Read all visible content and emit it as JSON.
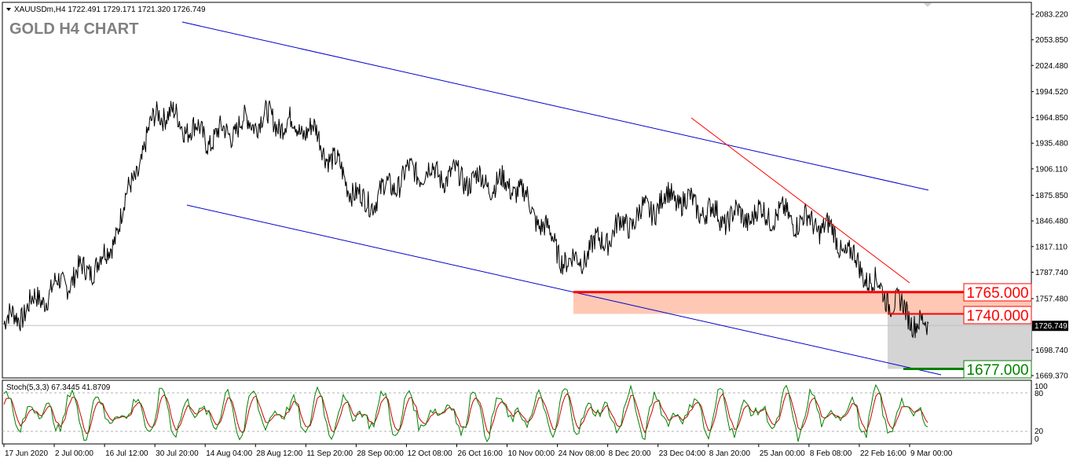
{
  "header": {
    "symbol_line": "XAUUSDm,H4  1722.491 1729.171 1721.320 1726.749",
    "chart_title": "GOLD H4 CHART"
  },
  "current_price": "1726.749",
  "levels": [
    {
      "label": "1765.000",
      "value": 1765.0,
      "color": "#ff0000"
    },
    {
      "label": "1740.000",
      "value": 1740.0,
      "color": "#ff0000"
    },
    {
      "label": "1677.000",
      "value": 1677.0,
      "color": "#008000"
    }
  ],
  "stochastic": {
    "label": "Stoch(5,3,3) 67.3445 41.8709",
    "ticks": [
      "100",
      "80",
      "20",
      "0"
    ],
    "main_color": "#008000",
    "signal_color": "#cc0000"
  },
  "chart_data": {
    "type": "line",
    "title": "GOLD H4 CHART",
    "xlabel": "",
    "ylabel": "",
    "ylim": [
      1669.37,
      2083.22
    ],
    "y_ticks": [
      "2083.220",
      "2053.850",
      "2024.480",
      "1994.520",
      "1964.850",
      "1935.480",
      "1906.110",
      "1875.850",
      "1846.480",
      "1817.110",
      "1787.740",
      "1757.480",
      "1698.740",
      "1669.370"
    ],
    "x_ticks": [
      "17 Jun 2020",
      "2 Jul 00:00",
      "16 Jul 12:00",
      "30 Jul 20:00",
      "14 Aug 04:00",
      "28 Aug 12:00",
      "11 Sep 20:00",
      "28 Sep 00:00",
      "12 Oct 08:00",
      "26 Oct 16:00",
      "10 Nov 00:00",
      "24 Nov 08:00",
      "8 Dec 20:00",
      "23 Dec 04:00",
      "8 Jan 20:00",
      "25 Jan 00:00",
      "8 Feb 08:00",
      "22 Feb 16:00",
      "9 Mar 00:00"
    ],
    "series": [
      {
        "x": [
          "17 Jun 2020",
          "2 Jul 00:00",
          "16 Jul 12:00",
          "30 Jul 20:00",
          "14 Aug 04:00",
          "28 Aug 12:00",
          "11 Sep 20:00",
          "28 Sep 00:00",
          "12 Oct 08:00",
          "26 Oct 16:00",
          "10 Nov 00:00",
          "24 Nov 08:00",
          "8 Dec 20:00",
          "23 Dec 04:00",
          "8 Jan 20:00",
          "25 Jan 00:00",
          "8 Feb 08:00",
          "22 Feb 16:00",
          "9 Mar 00:00"
        ],
        "values": [
          1728,
          1770,
          1805,
          1975,
          1940,
          1965,
          1950,
          1865,
          1905,
          1895,
          1885,
          1795,
          1840,
          1875,
          1850,
          1855,
          1840,
          1770,
          1720
        ],
        "color": "#000000"
      }
    ],
    "channel_color": "#0000cc",
    "trendline_color": "#ff0000",
    "support_zone_color": "#ffc8b4",
    "recent_range_color": "#d4d4d4"
  }
}
